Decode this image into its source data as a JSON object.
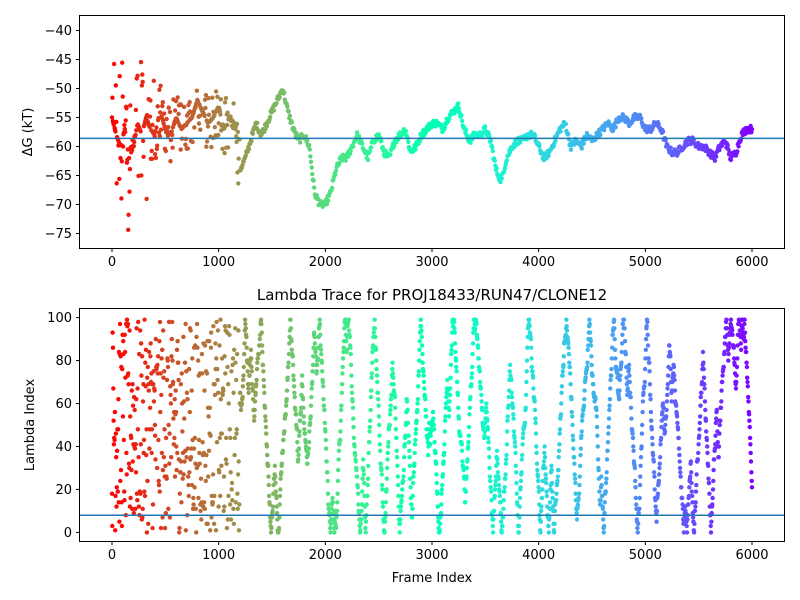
{
  "chart_data": [
    {
      "type": "scatter",
      "title": "",
      "xlabel": "",
      "ylabel": "ΔG (kT)",
      "xlim": [
        -300,
        6300
      ],
      "ylim": [
        -77.5,
        -37.5
      ],
      "xticks": [
        0,
        1000,
        2000,
        3000,
        4000,
        5000,
        6000
      ],
      "yticks": [
        -75,
        -70,
        -65,
        -60,
        -55,
        -50,
        -45,
        -40
      ],
      "grid": false,
      "colormap": "rainbow (red at frame 0 to violet at frame 6000)",
      "reference_line": {
        "y": -58.6,
        "color": "#1f77b4"
      },
      "series_trend": {
        "x": [
          0,
          40,
          80,
          120,
          160,
          200,
          240,
          280,
          320,
          360,
          400,
          450,
          500,
          550,
          600,
          650,
          700,
          750,
          800,
          850,
          900,
          950,
          1000,
          1050,
          1100,
          1150,
          1200,
          1250,
          1300,
          1350,
          1400,
          1450,
          1500,
          1550,
          1600,
          1650,
          1700,
          1750,
          1800,
          1850,
          1900,
          1950,
          2000,
          2050,
          2100,
          2150,
          2200,
          2250,
          2300,
          2350,
          2400,
          2450,
          2500,
          2550,
          2600,
          2650,
          2700,
          2750,
          2800,
          2850,
          2900,
          2950,
          3000,
          3050,
          3100,
          3150,
          3200,
          3250,
          3300,
          3350,
          3400,
          3450,
          3500,
          3550,
          3600,
          3650,
          3700,
          3750,
          3800,
          3850,
          3900,
          3950,
          4000,
          4050,
          4100,
          4150,
          4200,
          4250,
          4300,
          4350,
          4400,
          4450,
          4500,
          4550,
          4600,
          4650,
          4700,
          4750,
          4800,
          4850,
          4900,
          4950,
          5000,
          5050,
          5100,
          5150,
          5200,
          5250,
          5300,
          5350,
          5400,
          5450,
          5500,
          5550,
          5600,
          5650,
          5700,
          5750,
          5800,
          5850,
          5900,
          5950,
          6000
        ],
        "y": [
          -55,
          -58,
          -60,
          -57,
          -62,
          -60,
          -56,
          -58,
          -55,
          -57,
          -58,
          -54,
          -57,
          -58,
          -55,
          -57,
          -56,
          -55,
          -52,
          -54,
          -56,
          -55,
          -53,
          -57,
          -55,
          -56,
          -64,
          -62,
          -59,
          -56,
          -58,
          -56,
          -54,
          -52,
          -50,
          -54,
          -57,
          -59,
          -58,
          -60,
          -68,
          -70,
          -70,
          -68,
          -64,
          -62,
          -62,
          -60,
          -58,
          -60,
          -62,
          -59,
          -58,
          -61,
          -62,
          -59,
          -58,
          -57,
          -61,
          -60,
          -58,
          -57,
          -56,
          -56,
          -57,
          -55,
          -54,
          -53,
          -57,
          -59,
          -58,
          -58,
          -57,
          -59,
          -64,
          -66,
          -62,
          -60,
          -59,
          -59,
          -58,
          -58,
          -60,
          -62,
          -61,
          -59,
          -57,
          -56,
          -60,
          -59,
          -60,
          -58,
          -59,
          -58,
          -57,
          -56,
          -57,
          -55,
          -55,
          -56,
          -55,
          -55,
          -57,
          -57,
          -56,
          -57,
          -60,
          -61,
          -61,
          -60,
          -59,
          -59,
          -60,
          -60,
          -61,
          -62,
          -60,
          -59,
          -62,
          -61,
          -58,
          -57,
          -57
        ]
      }
    },
    {
      "type": "scatter",
      "title": "Lambda Trace for PROJ18433/RUN47/CLONE12",
      "xlabel": "Frame Index",
      "ylabel": "Lambda Index",
      "xlim": [
        -300,
        6300
      ],
      "ylim": [
        -4,
        104
      ],
      "xticks": [
        0,
        1000,
        2000,
        3000,
        4000,
        5000,
        6000
      ],
      "yticks": [
        0,
        20,
        40,
        60,
        80,
        100
      ],
      "grid": false,
      "colormap": "rainbow (red at frame 0 to violet at frame 6000)",
      "reference_line": {
        "y": 8,
        "color": "#1f77b4"
      },
      "value_range": [
        0,
        99
      ],
      "frame_count": 6000
    }
  ]
}
